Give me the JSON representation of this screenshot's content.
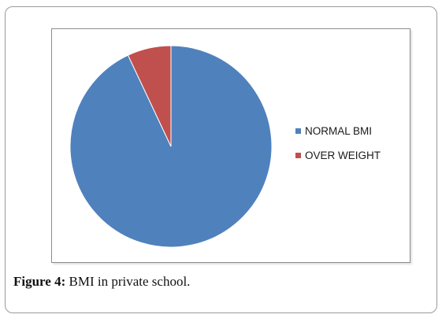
{
  "chart_data": {
    "type": "pie",
    "slices": [
      {
        "label": "NORMAL BMI",
        "value": 93,
        "color": "#4f81bd"
      },
      {
        "label": "OVER WEIGHT",
        "value": 7,
        "color": "#c0504d"
      }
    ],
    "start_angle": "12 o'clock",
    "direction": "clockwise",
    "legend_position": "right"
  },
  "caption": {
    "label": "Figure 4:",
    "text": " BMI in private school."
  }
}
